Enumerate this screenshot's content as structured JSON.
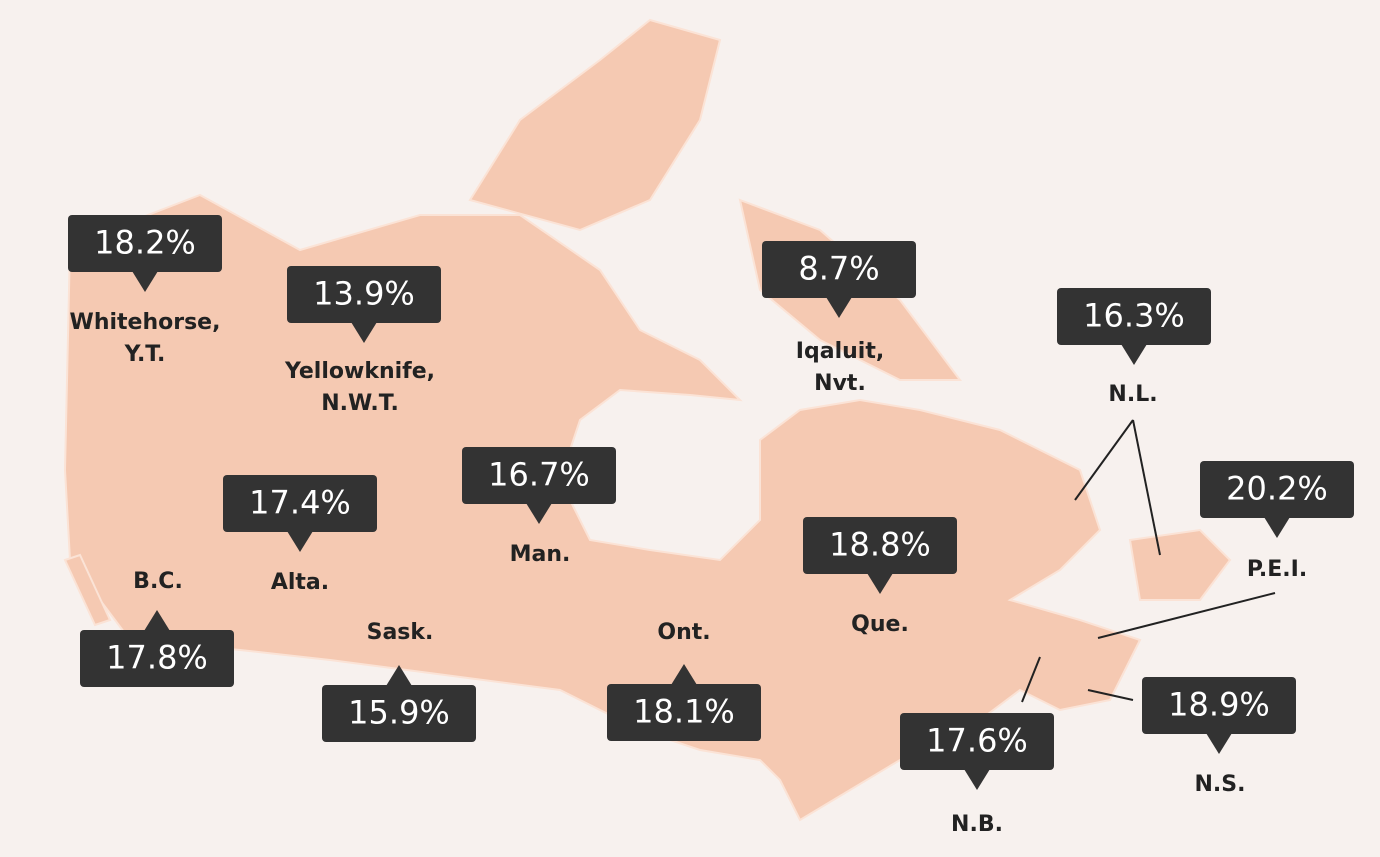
{
  "regions": [
    {
      "name": [
        "Whitehorse,",
        "Y.T."
      ],
      "value": "18.2%"
    },
    {
      "name": [
        "Yellowknife,",
        "N.W.T."
      ],
      "value": "13.9%"
    },
    {
      "name": [
        "Iqaluit,",
        "Nvt."
      ],
      "value": "8.7%"
    },
    {
      "name": [
        "N.L."
      ],
      "value": "16.3%"
    },
    {
      "name": [
        "P.E.I."
      ],
      "value": "20.2%"
    },
    {
      "name": [
        "Man."
      ],
      "value": "16.7%"
    },
    {
      "name": [
        "Alta."
      ],
      "value": "17.4%"
    },
    {
      "name": [
        "Que."
      ],
      "value": "18.8%"
    },
    {
      "name": [
        "B.C."
      ],
      "value": "17.8%"
    },
    {
      "name": [
        "Sask."
      ],
      "value": "15.9%"
    },
    {
      "name": [
        "Ont."
      ],
      "value": "18.1%"
    },
    {
      "name": [
        "N.B."
      ],
      "value": "17.6%"
    },
    {
      "name": [
        "N.S."
      ],
      "value": "18.9%"
    }
  ]
}
